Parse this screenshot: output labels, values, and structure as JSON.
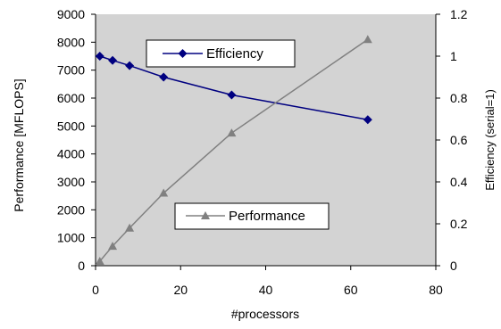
{
  "chart_data": {
    "type": "line",
    "title": "",
    "xlabel": "#processors",
    "ylabel_left": "Performance [MFLOPS]",
    "ylabel_right": "Efficiency (serial=1)",
    "xlim": [
      0,
      80
    ],
    "ylim_left": [
      0,
      9000
    ],
    "ylim_right": [
      0,
      1.2
    ],
    "x_ticks": [
      "0",
      "20",
      "40",
      "60",
      "80"
    ],
    "y_left_ticks": [
      "0",
      "1000",
      "2000",
      "3000",
      "4000",
      "5000",
      "6000",
      "7000",
      "8000",
      "9000"
    ],
    "y_right_ticks": [
      "0",
      "0.2",
      "0.4",
      "0.6",
      "0.8",
      "1",
      "1.2"
    ],
    "background": "#d3d3d3",
    "grid": false,
    "series": [
      {
        "name": "Efficiency",
        "axis": "right",
        "color": "#000080",
        "marker": "diamond",
        "x": [
          1,
          4,
          8,
          16,
          32,
          64
        ],
        "y": [
          1.0,
          0.98,
          0.955,
          0.9,
          0.815,
          0.697
        ]
      },
      {
        "name": "Performance",
        "axis": "left",
        "color": "#808080",
        "marker": "triangle",
        "x": [
          1,
          4,
          8,
          16,
          32,
          64
        ],
        "y": [
          160,
          700,
          1350,
          2600,
          4750,
          8100
        ]
      }
    ],
    "legend_placement": "inside"
  }
}
